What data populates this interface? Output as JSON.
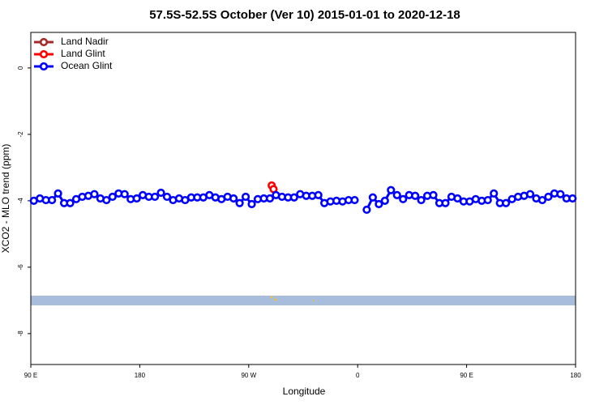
{
  "chart_data": {
    "type": "line",
    "title": "57.5S-52.5S October (Ver 10)   2015-01-01 to 2020-12-18",
    "x_label": "Longitude",
    "y_label": "XCO2 - MLO trend (ppm)",
    "xlim": [
      90,
      540
    ],
    "ylim": [
      -8.93,
      1.07
    ],
    "xticks": [
      {
        "value": 90,
        "label": "90 E"
      },
      180,
      {
        "value": 270,
        "label": "90 W"
      },
      {
        "value": 360,
        "label": "0"
      },
      {
        "value": 450,
        "label": "90 E"
      },
      {
        "value": 540,
        "label": "180"
      }
    ],
    "yticks": [
      0,
      -2,
      -4,
      -6,
      -8
    ],
    "legend": "upper left",
    "series": [
      {
        "name": "Land Nadir",
        "color": "#a52a2a",
        "x": [],
        "values": []
      },
      {
        "name": "Land Glint",
        "color": "#ff0000",
        "x": [
          289,
          290.5
        ],
        "values": [
          -3.54,
          -3.65
        ]
      },
      {
        "name": "Ocean Glint",
        "color": "#0000ff",
        "x": [
          92.5,
          97.5,
          102.5,
          107.5,
          112.5,
          117.5,
          122.5,
          127.5,
          132.5,
          137.5,
          142.5,
          147.5,
          152.5,
          157.5,
          162.5,
          167.5,
          172.5,
          177.5,
          182.5,
          187.5,
          192.5,
          197.5,
          202.5,
          207.5,
          212.5,
          217.5,
          222.5,
          227.5,
          232.5,
          237.5,
          242.5,
          247.5,
          252.5,
          257.5,
          262.5,
          267.5,
          272.5,
          277.5,
          282.5,
          287.5,
          292.5,
          297.5,
          302.5,
          307.5,
          312.5,
          317.5,
          322.5,
          327.5,
          332.5,
          337.5,
          342.5,
          347.5,
          352.5,
          357.5,
          362.5,
          367.5,
          372.5,
          377.5,
          382.5,
          387.5,
          392.5,
          397.5,
          402.5,
          407.5,
          412.5,
          417.5,
          422.5,
          427.5,
          432.5,
          437.5,
          442.5,
          447.5,
          452.5,
          457.5,
          462.5,
          467.5,
          472.5,
          477.5,
          482.5,
          487.5,
          492.5,
          497.5,
          502.5,
          507.5,
          512.5,
          517.5,
          522.5,
          527.5,
          532.5,
          537.5
        ],
        "values": [
          -4.0,
          -3.93,
          -3.98,
          -3.98,
          -3.78,
          -4.07,
          -4.07,
          -3.95,
          -3.88,
          -3.85,
          -3.8,
          -3.93,
          -3.98,
          -3.88,
          -3.78,
          -3.8,
          -3.95,
          -3.93,
          -3.83,
          -3.88,
          -3.88,
          -3.76,
          -3.88,
          -3.98,
          -3.93,
          -3.98,
          -3.9,
          -3.9,
          -3.9,
          -3.83,
          -3.9,
          -3.95,
          -3.88,
          -3.93,
          -4.07,
          -3.88,
          -4.1,
          -3.95,
          -3.93,
          -3.93,
          -3.83,
          -3.88,
          -3.9,
          -3.9,
          -3.8,
          -3.85,
          -3.85,
          -3.83,
          -4.07,
          -4.02,
          -4.0,
          -4.02,
          -3.98,
          -3.98,
          null,
          -4.27,
          -3.9,
          -4.1,
          -4.0,
          -3.68,
          -3.83,
          -3.95,
          -3.83,
          -3.85,
          -3.98,
          -3.85,
          -3.83,
          -4.07,
          -4.07,
          -3.88,
          -3.93,
          -4.02,
          -4.02,
          -3.95,
          -4.0,
          -3.98,
          -3.78,
          -4.07,
          -4.07,
          -3.95,
          -3.88,
          -3.85,
          -3.8,
          -3.93,
          -3.98,
          -3.88,
          -3.78,
          -3.8,
          -3.93,
          -3.93
        ]
      }
    ]
  }
}
